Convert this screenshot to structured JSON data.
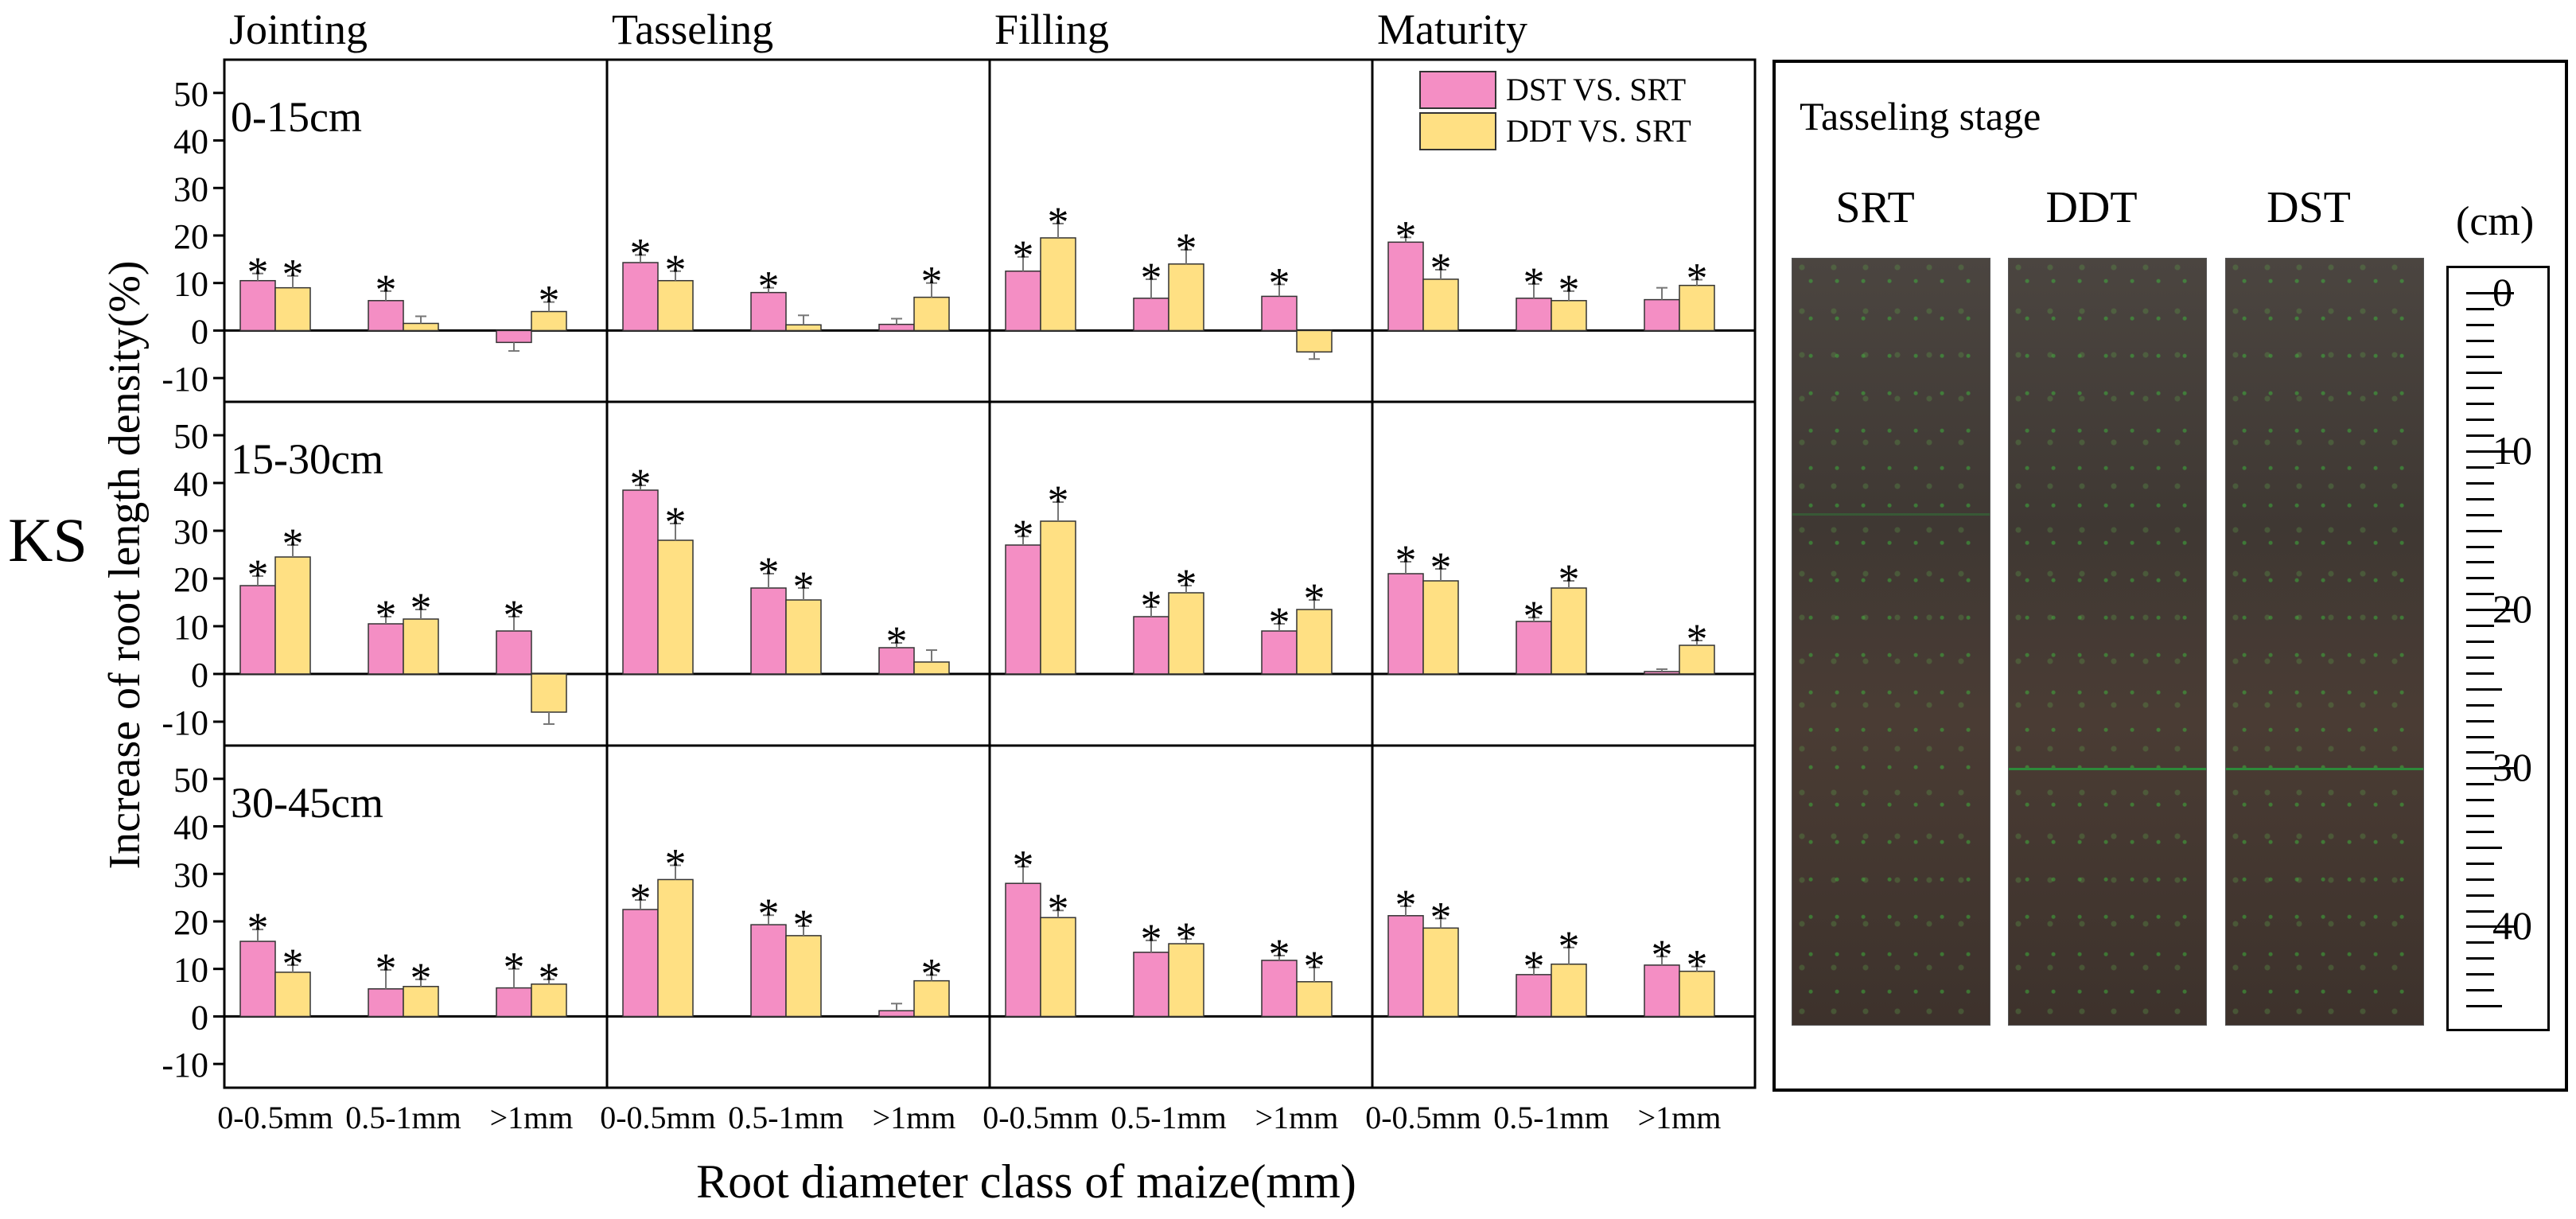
{
  "y_axis_title": "Increase of root length density(%)",
  "x_axis_title": "Root diameter class of maize(mm)",
  "left_label": "KS",
  "legend": [
    "DST VS. SRT",
    "DDT VS. SRT"
  ],
  "colors": {
    "dst": "#f48ec4",
    "ddt": "#ffe083",
    "panel_border": "#000000"
  },
  "chart_data": {
    "type": "bar",
    "stages": [
      "Jointing",
      "Tasseling",
      "Filling",
      "Maturity"
    ],
    "depths": [
      "0-15cm",
      "15-30cm",
      "30-45cm"
    ],
    "categories": [
      "0-0.5mm",
      "0.5-1mm",
      ">1mm"
    ],
    "ylim": [
      -15,
      57
    ],
    "yticks": [
      -10,
      0,
      10,
      20,
      30,
      40,
      50
    ],
    "series": [
      {
        "name": "DST VS. SRT",
        "color": "#f48ec4",
        "values": [
          [
            [
              10.5,
              6.3,
              -2.5
            ],
            [
              14.3,
              8.0,
              1.3
            ],
            [
              12.5,
              6.8,
              7.2
            ],
            [
              18.6,
              6.8,
              6.5
            ]
          ],
          [
            [
              18.5,
              10.5,
              9.0
            ],
            [
              38.5,
              18.0,
              5.5
            ],
            [
              27.0,
              12.0,
              9.0
            ],
            [
              21.0,
              11.0,
              0.5
            ]
          ],
          [
            [
              15.8,
              5.8,
              6.0
            ],
            [
              22.5,
              19.3,
              1.2
            ],
            [
              28.0,
              13.5,
              11.8
            ],
            [
              21.2,
              8.8,
              10.8
            ]
          ]
        ],
        "errors": [
          [
            [
              1.5,
              2.0,
              1.8
            ],
            [
              1.6,
              1.0,
              1.2
            ],
            [
              3.0,
              4.0,
              2.5
            ],
            [
              1.0,
              3.0,
              2.5
            ]
          ],
          [
            [
              2.0,
              1.5,
              3.0
            ],
            [
              1.0,
              3.0,
              1.0
            ],
            [
              1.8,
              2.0,
              1.5
            ],
            [
              2.5,
              0.8,
              0.5
            ]
          ],
          [
            [
              2.5,
              4.0,
              4.0
            ],
            [
              2.0,
              2.0,
              1.5
            ],
            [
              3.5,
              2.5,
              1.0
            ],
            [
              2.0,
              1.5,
              1.8
            ]
          ]
        ],
        "significant": [
          [
            [
              true,
              true,
              false
            ],
            [
              true,
              true,
              false
            ],
            [
              true,
              true,
              true
            ],
            [
              true,
              true,
              false
            ]
          ],
          [
            [
              true,
              true,
              true
            ],
            [
              true,
              true,
              true
            ],
            [
              true,
              true,
              true
            ],
            [
              true,
              true,
              false
            ]
          ],
          [
            [
              true,
              true,
              true
            ],
            [
              true,
              true,
              false
            ],
            [
              true,
              true,
              true
            ],
            [
              true,
              true,
              true
            ]
          ]
        ]
      },
      {
        "name": "DDT VS. SRT",
        "color": "#ffe083",
        "values": [
          [
            [
              9.0,
              1.5,
              4.0
            ],
            [
              10.5,
              1.2,
              7.0
            ],
            [
              19.5,
              14.0,
              -4.5
            ],
            [
              10.8,
              6.3,
              9.5
            ]
          ],
          [
            [
              24.5,
              11.5,
              -8.0
            ],
            [
              28.0,
              15.5,
              2.5
            ],
            [
              32.0,
              17.0,
              13.5
            ],
            [
              19.5,
              18.0,
              6.0
            ]
          ],
          [
            [
              9.3,
              6.3,
              6.8
            ],
            [
              28.8,
              17.0,
              7.5
            ],
            [
              20.8,
              15.3,
              7.3
            ],
            [
              18.6,
              11.0,
              9.5
            ]
          ]
        ],
        "errors": [
          [
            [
              2.5,
              1.5,
              2.0
            ],
            [
              2.0,
              2.0,
              3.0
            ],
            [
              3.0,
              3.0,
              1.5
            ],
            [
              2.0,
              2.0,
              1.2
            ]
          ],
          [
            [
              2.5,
              2.0,
              2.5
            ],
            [
              3.5,
              2.5,
              2.5
            ],
            [
              4.0,
              1.5,
              2.0
            ],
            [
              2.5,
              1.5,
              1.0
            ]
          ],
          [
            [
              1.5,
              1.5,
              1.0
            ],
            [
              3.0,
              2.0,
              1.2
            ],
            [
              1.5,
              1.0,
              3.0
            ],
            [
              2.0,
              3.5,
              1.0
            ]
          ]
        ],
        "significant": [
          [
            [
              true,
              false,
              true
            ],
            [
              true,
              false,
              true
            ],
            [
              true,
              true,
              false
            ],
            [
              true,
              true,
              true
            ]
          ],
          [
            [
              true,
              true,
              false
            ],
            [
              true,
              true,
              false
            ],
            [
              true,
              true,
              true
            ],
            [
              true,
              true,
              true
            ]
          ],
          [
            [
              true,
              true,
              true
            ],
            [
              true,
              true,
              true
            ],
            [
              true,
              true,
              true
            ],
            [
              true,
              true,
              true
            ]
          ]
        ]
      }
    ]
  },
  "photo": {
    "title": "Tasseling stage",
    "columns": [
      "SRT",
      "DDT",
      "DST"
    ],
    "scale_unit": "(cm)",
    "scale_labels": [
      "0",
      "10",
      "20",
      "30",
      "40"
    ]
  }
}
